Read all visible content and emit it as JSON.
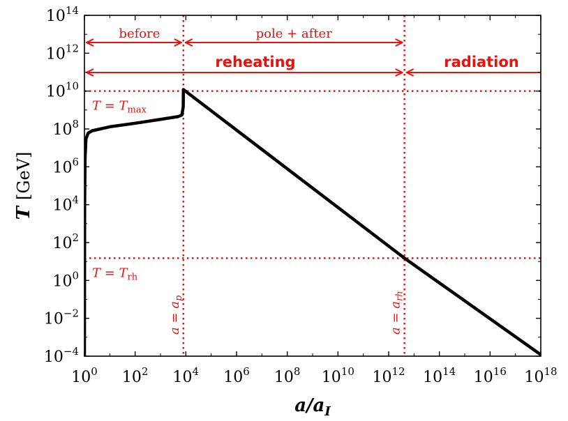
{
  "colors": {
    "curve": "#000000",
    "annotation": "#e8120c",
    "axes": "#000000",
    "background": "#ffffff"
  },
  "chart_data": {
    "type": "line",
    "title": "",
    "xlabel": "a/a_I",
    "ylabel_symbol": "T",
    "ylabel_unit": "[GeV]",
    "xscale": "log",
    "yscale": "log",
    "xlim": [
      1,
      1e+18
    ],
    "ylim": [
      0.0001,
      100000000000000.0
    ],
    "grid": false,
    "x_ticks": [
      {
        "value": 1,
        "base": "10",
        "exp": "0"
      },
      {
        "value": 100,
        "base": "10",
        "exp": "2"
      },
      {
        "value": 10000,
        "base": "10",
        "exp": "4"
      },
      {
        "value": 1000000,
        "base": "10",
        "exp": "6"
      },
      {
        "value": 100000000,
        "base": "10",
        "exp": "8"
      },
      {
        "value": 10000000000,
        "base": "10",
        "exp": "10"
      },
      {
        "value": 1000000000000,
        "base": "10",
        "exp": "12"
      },
      {
        "value": 100000000000000,
        "base": "10",
        "exp": "14"
      },
      {
        "value": 10000000000000000,
        "base": "10",
        "exp": "16"
      },
      {
        "value": 1000000000000000000,
        "base": "10",
        "exp": "18"
      }
    ],
    "y_ticks": [
      {
        "value": 0.0001,
        "base": "10",
        "exp": "−4"
      },
      {
        "value": 0.01,
        "base": "10",
        "exp": "−2"
      },
      {
        "value": 1,
        "base": "10",
        "exp": "0"
      },
      {
        "value": 100,
        "base": "10",
        "exp": "2"
      },
      {
        "value": 10000,
        "base": "10",
        "exp": "4"
      },
      {
        "value": 1000000,
        "base": "10",
        "exp": "6"
      },
      {
        "value": 100000000,
        "base": "10",
        "exp": "8"
      },
      {
        "value": 10000000000,
        "base": "10",
        "exp": "10"
      },
      {
        "value": 1000000000000,
        "base": "10",
        "exp": "12"
      },
      {
        "value": 100000000000000,
        "base": "10",
        "exp": "14"
      }
    ],
    "series": [
      {
        "points": [
          {
            "x": 1.0,
            "y": 0.0001
          },
          {
            "x": 1.02,
            "y": 10000.0
          },
          {
            "x": 1.06,
            "y": 3000000.0
          },
          {
            "x": 1.15,
            "y": 30000000.0
          },
          {
            "x": 1.4,
            "y": 60000000.0
          },
          {
            "x": 2,
            "y": 80000000.0
          },
          {
            "x": 10,
            "y": 130000000.0
          },
          {
            "x": 100,
            "y": 200000000.0
          },
          {
            "x": 1000,
            "y": 320000000.0
          },
          {
            "x": 5000,
            "y": 450000000.0
          },
          {
            "x": 7000,
            "y": 550000000.0
          },
          {
            "x": 7900,
            "y": 1500000000.0
          },
          {
            "x": 8000,
            "y": 10000000000.0
          },
          {
            "x": 8000,
            "y": 12000000000.0
          },
          {
            "x": 4200000000000.0,
            "y": 15
          },
          {
            "x": 1e+18,
            "y": 0.00012
          }
        ]
      }
    ],
    "reference_lines": {
      "vertical": [
        {
          "x": 8000,
          "label": "a = a_p",
          "label_main": "a = a",
          "label_sub": "p"
        },
        {
          "x": 4200000000000.0,
          "label": "a = a_rh",
          "label_main": "a = a",
          "label_sub": "rh"
        }
      ],
      "horizontal": [
        {
          "y": 10000000000.0,
          "label": "T = T_max",
          "label_main": "T = T",
          "label_sub": "max"
        },
        {
          "y": 15,
          "label": "T = T_rh",
          "label_main": "T = T",
          "label_sub": "rh"
        }
      ]
    },
    "annotations": {
      "before": {
        "text": "before",
        "x_from": 1,
        "x_to": 8000
      },
      "pole_after": {
        "text": "pole + after",
        "x_from": 8000,
        "x_to": 4200000000000.0
      },
      "reheating": {
        "text": "reheating",
        "x_from": 1,
        "x_to": 4200000000000.0
      },
      "radiation": {
        "text": "radiation",
        "x_from": 4200000000000.0,
        "x_to": 1e+18
      }
    }
  }
}
